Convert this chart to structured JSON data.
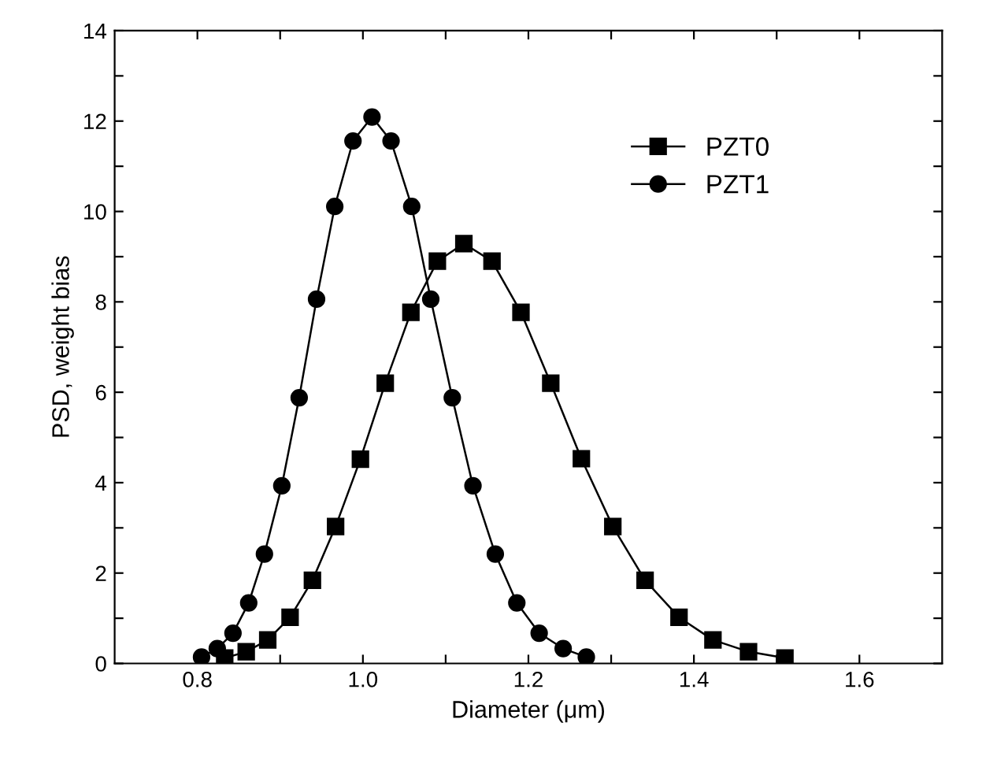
{
  "chart_data": {
    "type": "line",
    "xlabel": "Diameter (μm)",
    "ylabel": "PSD, weight bias",
    "xlim": [
      0.7,
      1.7
    ],
    "ylim": [
      0,
      14
    ],
    "xticks": [
      0.8,
      {
        "value": 0.9,
        "label": null
      },
      {
        "value": 1.0,
        "label": "1.0"
      },
      {
        "value": 1.1,
        "label": null
      },
      1.2,
      {
        "value": 1.3,
        "label": null
      },
      1.4,
      {
        "value": 1.5,
        "label": null
      },
      1.6
    ],
    "yticks": [
      0,
      {
        "value": 1,
        "label": null
      },
      2,
      {
        "value": 3,
        "label": null
      },
      4,
      {
        "value": 5,
        "label": null
      },
      6,
      {
        "value": 7,
        "label": null
      },
      8,
      {
        "value": 9,
        "label": null
      },
      10,
      {
        "value": 11,
        "label": null
      },
      12,
      {
        "value": 13,
        "label": null
      },
      14
    ],
    "grid": false,
    "legend": "top right",
    "line_style": "solid",
    "series": [
      {
        "name": "PZT0",
        "color": "#000000",
        "marker": "square",
        "x": [
          0.833,
          0.859,
          0.885,
          0.912,
          0.939,
          0.967,
          0.997,
          1.027,
          1.058,
          1.09,
          1.122,
          1.156,
          1.191,
          1.227,
          1.264,
          1.302,
          1.341,
          1.382,
          1.423,
          1.466,
          1.51
        ],
        "values": [
          0.12,
          0.26,
          0.52,
          1.02,
          1.84,
          3.03,
          4.52,
          6.2,
          7.77,
          8.9,
          9.29,
          8.9,
          7.77,
          6.2,
          4.53,
          3.03,
          1.84,
          1.02,
          0.52,
          0.26,
          0.12
        ]
      },
      {
        "name": "PZT1",
        "color": "#000000",
        "marker": "circle",
        "x": [
          0.805,
          0.824,
          0.843,
          0.862,
          0.881,
          0.902,
          0.923,
          0.944,
          0.966,
          0.988,
          1.011,
          1.034,
          1.059,
          1.082,
          1.108,
          1.133,
          1.16,
          1.186,
          1.213,
          1.242,
          1.27
        ],
        "values": [
          0.14,
          0.33,
          0.67,
          1.34,
          2.42,
          3.93,
          5.88,
          8.06,
          10.11,
          11.56,
          12.09,
          11.56,
          10.11,
          8.06,
          5.88,
          3.93,
          2.42,
          1.34,
          0.67,
          0.33,
          0.14
        ]
      }
    ]
  }
}
